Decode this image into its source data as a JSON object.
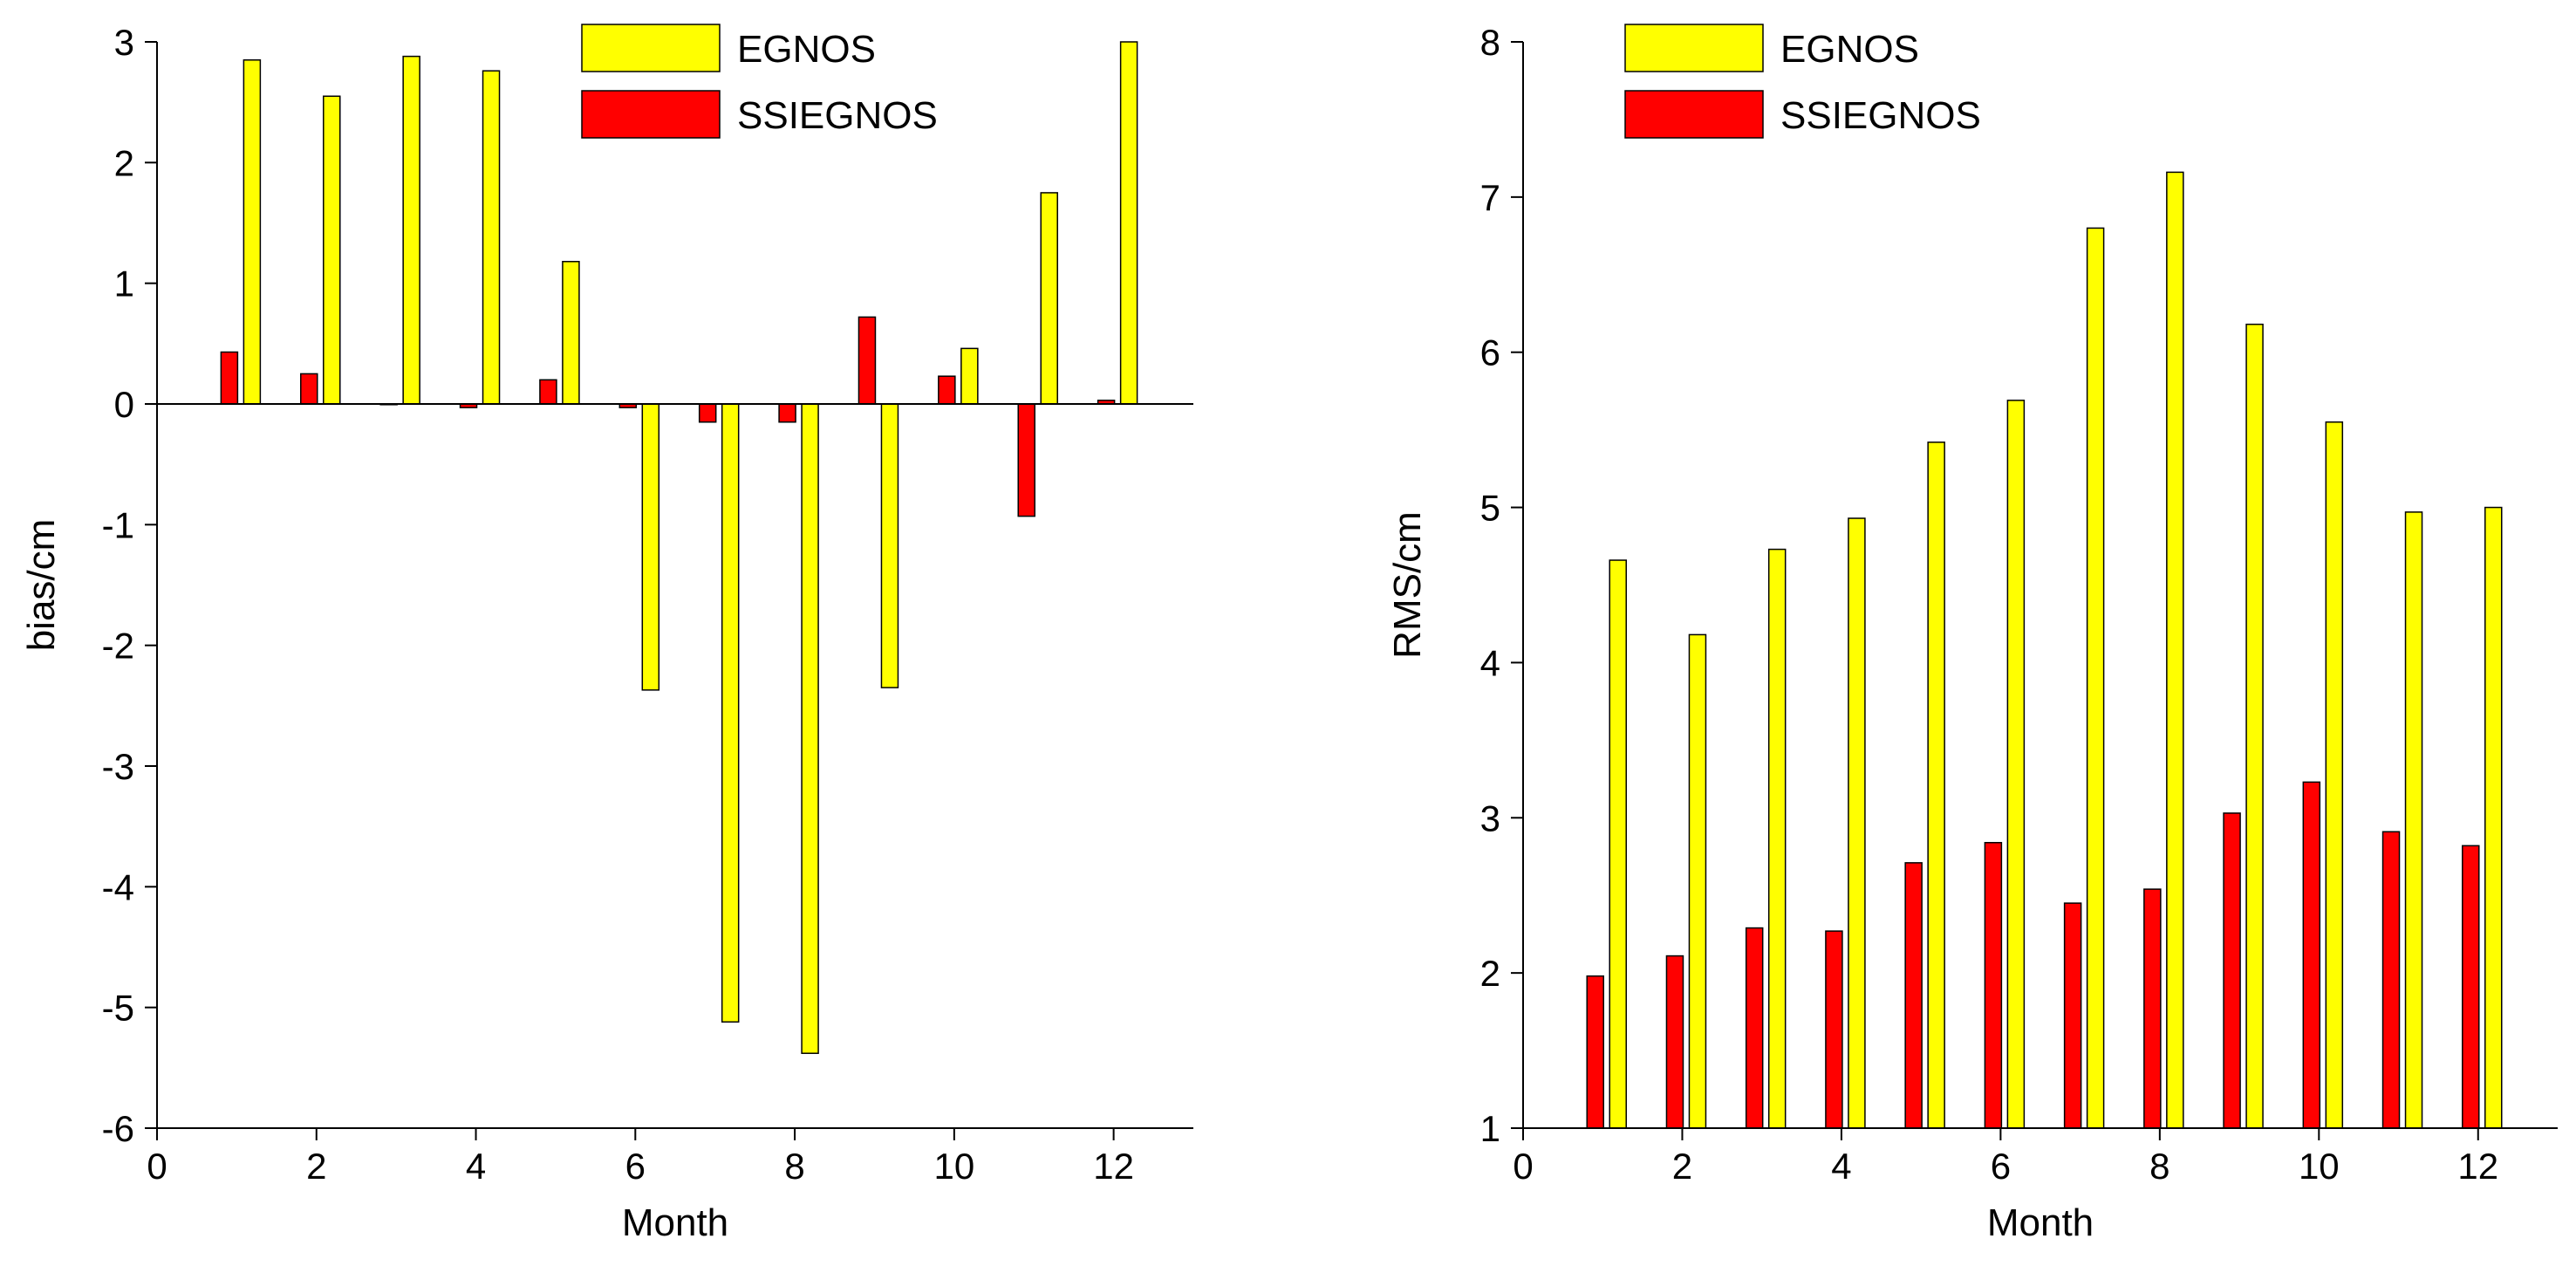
{
  "colors": {
    "egnos": "#ffff00",
    "ssiegnos": "#ff0000",
    "axis": "#000000",
    "background": "#ffffff"
  },
  "chart_data": [
    {
      "type": "bar",
      "title": "",
      "xlabel": "Month",
      "ylabel": "bias/cm",
      "xlim": [
        0,
        13
      ],
      "ylim": [
        -6,
        3
      ],
      "xticks": [
        0,
        2,
        4,
        6,
        8,
        10,
        12
      ],
      "yticks": [
        -6,
        -5,
        -4,
        -3,
        -2,
        -1,
        0,
        1,
        2,
        3
      ],
      "categories": [
        1,
        2,
        3,
        4,
        5,
        6,
        7,
        8,
        9,
        10,
        11,
        12
      ],
      "legend_position": "top-right",
      "zero_line": true,
      "series": [
        {
          "name": "SSIEGNOS",
          "color": "#ff0000",
          "values": [
            0.43,
            0.25,
            0.0,
            -0.03,
            0.2,
            -0.03,
            -0.15,
            -0.15,
            0.72,
            0.23,
            -0.93,
            0.03
          ]
        },
        {
          "name": "EGNOS",
          "color": "#ffff00",
          "values": [
            2.85,
            2.55,
            2.88,
            2.76,
            1.18,
            -2.37,
            -5.12,
            -5.38,
            -2.35,
            0.46,
            1.75,
            3.0
          ]
        }
      ]
    },
    {
      "type": "bar",
      "title": "",
      "xlabel": "Month",
      "ylabel": "RMS/cm",
      "xlim": [
        0,
        13
      ],
      "ylim": [
        1,
        8
      ],
      "xticks": [
        0,
        2,
        4,
        6,
        8,
        10,
        12
      ],
      "yticks": [
        1,
        2,
        3,
        4,
        5,
        6,
        7,
        8
      ],
      "categories": [
        1,
        2,
        3,
        4,
        5,
        6,
        7,
        8,
        9,
        10,
        11,
        12
      ],
      "legend_position": "top-right",
      "zero_line": false,
      "series": [
        {
          "name": "SSIEGNOS",
          "color": "#ff0000",
          "values": [
            1.98,
            2.11,
            2.29,
            2.27,
            2.71,
            2.84,
            2.45,
            2.54,
            3.03,
            3.23,
            2.91,
            2.82
          ]
        },
        {
          "name": "EGNOS",
          "color": "#ffff00",
          "values": [
            4.66,
            4.18,
            4.73,
            4.93,
            5.42,
            5.69,
            6.8,
            7.16,
            6.18,
            5.55,
            4.97,
            5.0
          ]
        }
      ]
    }
  ]
}
